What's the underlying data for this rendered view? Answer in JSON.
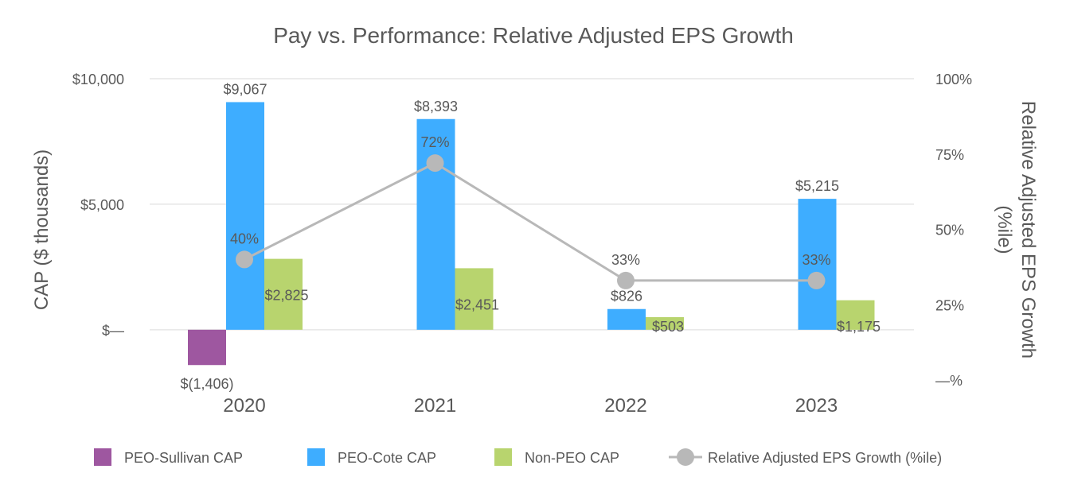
{
  "chart_data": {
    "type": "bar",
    "title": "Pay vs. Performance: Relative Adjusted EPS Growth",
    "categories": [
      "2020",
      "2021",
      "2022",
      "2023"
    ],
    "ylabel": "CAP ($ thousands)",
    "y2label_lines": [
      "Relative Adjusted EPS Growth",
      "(%ile)"
    ],
    "ylim": [
      -2000,
      10000
    ],
    "y2lim": [
      0,
      100
    ],
    "grid": true,
    "legend_position": "bottom",
    "yticks": [
      {
        "value": 10000,
        "label": "$10,000"
      },
      {
        "value": 5000,
        "label": "$5,000"
      },
      {
        "value": 0,
        "label": "$—"
      }
    ],
    "y2ticks": [
      {
        "value": 100,
        "label": "100%"
      },
      {
        "value": 75,
        "label": "75%"
      },
      {
        "value": 50,
        "label": "50%"
      },
      {
        "value": 25,
        "label": "25%"
      },
      {
        "value": 0,
        "label": "—%"
      }
    ],
    "series": [
      {
        "name": "PEO-Sullivan CAP",
        "type": "bar",
        "color": "#9e57a0",
        "values": [
          -1406,
          null,
          null,
          null
        ],
        "labels": [
          "$(1,406)",
          null,
          null,
          null
        ]
      },
      {
        "name": "PEO-Cote CAP",
        "type": "bar",
        "color": "#3eadff",
        "values": [
          9067,
          8393,
          826,
          5215
        ],
        "labels": [
          "$9,067",
          "$8,393",
          "$826",
          "$5,215"
        ]
      },
      {
        "name": "Non-PEO CAP",
        "type": "bar",
        "color": "#b8d46e",
        "values": [
          2825,
          2451,
          503,
          1175
        ],
        "labels": [
          "$2,825",
          "$2,451",
          "$503",
          "$1,175"
        ]
      },
      {
        "name": "Relative Adjusted EPS Growth (%ile)",
        "type": "line",
        "axis": "right",
        "color": "#b8b8b8",
        "values": [
          40,
          72,
          33,
          33
        ],
        "labels": [
          "40%",
          "72%",
          "33%",
          "33%"
        ]
      }
    ]
  }
}
